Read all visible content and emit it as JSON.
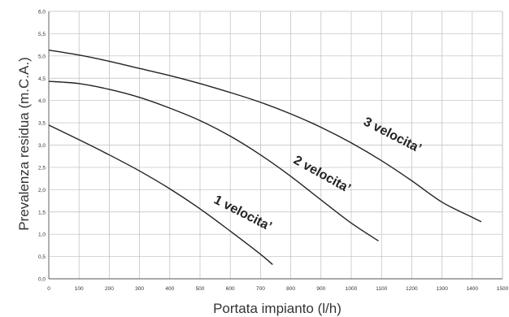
{
  "chart_data": {
    "type": "line",
    "xlabel": "Portata impianto (l/h)",
    "ylabel": "Prevalenza residua (m.C.A.)",
    "xlim": [
      0,
      1500
    ],
    "ylim": [
      0,
      6
    ],
    "x_ticks": [
      "0",
      "100",
      "200",
      "300",
      "400",
      "500",
      "600",
      "700",
      "800",
      "900",
      "1000",
      "1100",
      "1200",
      "1300",
      "1400",
      "1500"
    ],
    "y_ticks": [
      "0,0",
      "0,5",
      "1,0",
      "1,5",
      "2,0",
      "2,5",
      "3,0",
      "3,5",
      "4,0",
      "4,5",
      "5,0",
      "5,5",
      "6,0"
    ],
    "grid": true,
    "series": [
      {
        "name": "1 velocita’",
        "x": [
          0,
          100,
          200,
          300,
          400,
          500,
          600,
          700,
          740
        ],
        "y": [
          3.45,
          3.12,
          2.78,
          2.42,
          2.02,
          1.57,
          1.07,
          0.55,
          0.32
        ]
      },
      {
        "name": "2 velocita’",
        "x": [
          0,
          100,
          200,
          300,
          400,
          500,
          600,
          700,
          800,
          900,
          1000,
          1090
        ],
        "y": [
          4.43,
          4.38,
          4.25,
          4.07,
          3.83,
          3.55,
          3.2,
          2.78,
          2.3,
          1.77,
          1.25,
          0.85
        ]
      },
      {
        "name": "3 velocita’",
        "x": [
          0,
          100,
          200,
          300,
          400,
          500,
          600,
          700,
          800,
          900,
          1000,
          1100,
          1200,
          1300,
          1400,
          1430
        ],
        "y": [
          5.13,
          5.02,
          4.88,
          4.72,
          4.56,
          4.38,
          4.18,
          3.96,
          3.7,
          3.4,
          3.05,
          2.65,
          2.2,
          1.72,
          1.38,
          1.28
        ]
      }
    ]
  }
}
